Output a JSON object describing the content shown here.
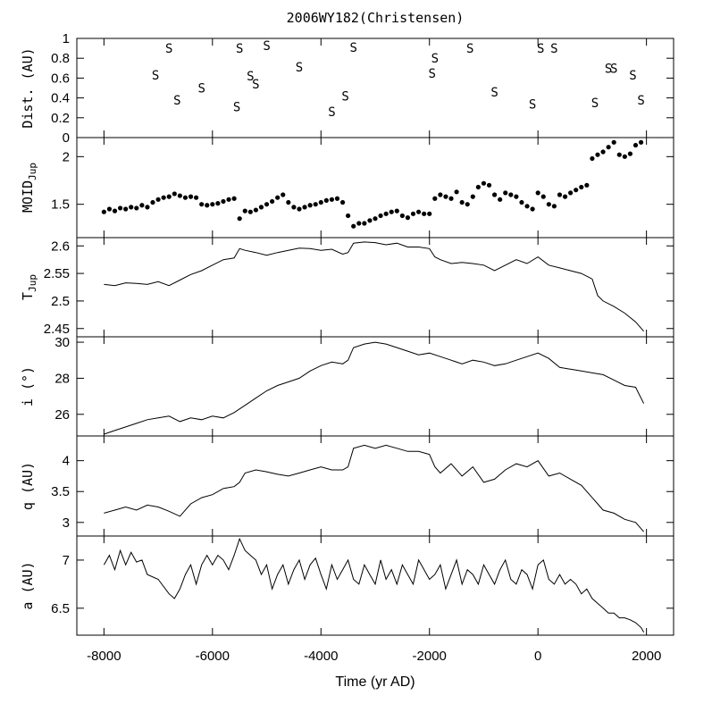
{
  "chart_data": {
    "type": "line",
    "title": "2006WY182(Christensen)",
    "xlabel": "Time (yr AD)",
    "xlim": [
      -8500,
      2500
    ],
    "xticks": [
      -8000,
      -6000,
      -4000,
      -2000,
      0,
      2000
    ],
    "xtick_labels": [
      "-8000",
      "-6000",
      "-4000",
      "-2000",
      "0",
      "2000"
    ],
    "panels": [
      {
        "name": "dist",
        "ylabel": "Dist. (AU)",
        "type": "scatter",
        "marker": "S",
        "ylim": [
          0,
          1
        ],
        "yticks": [
          0,
          0.2,
          0.4,
          0.6,
          0.8,
          1
        ],
        "ytick_labels": [
          "0",
          "0.2",
          "0.4",
          "0.6",
          "0.8",
          "1"
        ],
        "x": [
          -6800,
          -7050,
          -6650,
          -6200,
          -5550,
          -5500,
          -5300,
          -5200,
          -5000,
          -4400,
          -3800,
          -3550,
          -3400,
          -1950,
          -1900,
          -1250,
          -800,
          -100,
          50,
          300,
          1050,
          1300,
          1400,
          1750,
          1900
        ],
        "y": [
          0.9,
          0.63,
          0.38,
          0.5,
          0.31,
          0.9,
          0.62,
          0.54,
          0.93,
          0.71,
          0.26,
          0.42,
          0.91,
          0.65,
          0.8,
          0.9,
          0.46,
          0.34,
          0.9,
          0.9,
          0.35,
          0.7,
          0.7,
          0.63,
          0.38
        ]
      },
      {
        "name": "moid",
        "ylabel": "MOID_Jup",
        "ylabel_main": "MOID",
        "ylabel_sub": "Jup",
        "type": "scatter",
        "marker": "dot",
        "ylim": [
          1.15,
          2.2
        ],
        "yticks": [
          1.5,
          2
        ],
        "ytick_labels": [
          "1.5",
          "2"
        ],
        "x": [
          -8000,
          -7900,
          -7800,
          -7700,
          -7600,
          -7500,
          -7400,
          -7300,
          -7200,
          -7100,
          -7000,
          -6900,
          -6800,
          -6700,
          -6600,
          -6500,
          -6400,
          -6300,
          -6200,
          -6100,
          -6000,
          -5900,
          -5800,
          -5700,
          -5600,
          -5500,
          -5400,
          -5300,
          -5200,
          -5100,
          -5000,
          -4900,
          -4800,
          -4700,
          -4600,
          -4500,
          -4400,
          -4300,
          -4200,
          -4100,
          -4000,
          -3900,
          -3800,
          -3700,
          -3600,
          -3500,
          -3400,
          -3300,
          -3200,
          -3100,
          -3000,
          -2900,
          -2800,
          -2700,
          -2600,
          -2500,
          -2400,
          -2300,
          -2200,
          -2100,
          -2000,
          -1900,
          -1800,
          -1700,
          -1600,
          -1500,
          -1400,
          -1300,
          -1200,
          -1100,
          -1000,
          -900,
          -800,
          -700,
          -600,
          -500,
          -400,
          -300,
          -200,
          -100,
          0,
          100,
          200,
          300,
          400,
          500,
          600,
          700,
          800,
          900,
          1000,
          1100,
          1200,
          1300,
          1400,
          1500,
          1600,
          1700,
          1800,
          1900
        ],
        "y": [
          1.42,
          1.45,
          1.43,
          1.46,
          1.45,
          1.47,
          1.46,
          1.49,
          1.47,
          1.52,
          1.55,
          1.57,
          1.58,
          1.61,
          1.59,
          1.57,
          1.58,
          1.57,
          1.5,
          1.49,
          1.5,
          1.51,
          1.53,
          1.55,
          1.56,
          1.35,
          1.43,
          1.42,
          1.44,
          1.47,
          1.5,
          1.53,
          1.57,
          1.6,
          1.52,
          1.47,
          1.45,
          1.47,
          1.49,
          1.5,
          1.52,
          1.54,
          1.55,
          1.56,
          1.52,
          1.38,
          1.27,
          1.3,
          1.3,
          1.33,
          1.35,
          1.38,
          1.4,
          1.42,
          1.43,
          1.38,
          1.36,
          1.4,
          1.42,
          1.4,
          1.4,
          1.56,
          1.6,
          1.58,
          1.56,
          1.63,
          1.52,
          1.5,
          1.58,
          1.68,
          1.72,
          1.7,
          1.6,
          1.55,
          1.62,
          1.6,
          1.58,
          1.52,
          1.48,
          1.45,
          1.62,
          1.58,
          1.5,
          1.48,
          1.6,
          1.58,
          1.62,
          1.65,
          1.68,
          1.7,
          1.98,
          2.02,
          2.05,
          2.1,
          2.15,
          2.02,
          2.0,
          2.03,
          2.12,
          2.15
        ]
      },
      {
        "name": "tjup",
        "ylabel": "T_Jup",
        "ylabel_main": "T",
        "ylabel_sub": "Jup",
        "type": "line",
        "ylim": [
          2.435,
          2.615
        ],
        "yticks": [
          2.45,
          2.5,
          2.55,
          2.6
        ],
        "ytick_labels": [
          "2.45",
          "2.5",
          "2.55",
          "2.6"
        ],
        "x": [
          -8000,
          -7800,
          -7600,
          -7400,
          -7200,
          -7000,
          -6800,
          -6600,
          -6400,
          -6200,
          -6000,
          -5800,
          -5600,
          -5500,
          -5400,
          -5200,
          -5000,
          -4800,
          -4600,
          -4400,
          -4200,
          -4000,
          -3800,
          -3600,
          -3500,
          -3400,
          -3200,
          -3000,
          -2800,
          -2600,
          -2400,
          -2200,
          -2000,
          -1900,
          -1800,
          -1600,
          -1400,
          -1200,
          -1000,
          -800,
          -600,
          -400,
          -200,
          0,
          200,
          400,
          600,
          800,
          1000,
          1100,
          1200,
          1400,
          1600,
          1800,
          1950
        ],
        "y": [
          2.53,
          2.528,
          2.533,
          2.532,
          2.53,
          2.535,
          2.528,
          2.538,
          2.548,
          2.555,
          2.565,
          2.575,
          2.578,
          2.595,
          2.592,
          2.588,
          2.583,
          2.588,
          2.592,
          2.596,
          2.595,
          2.592,
          2.594,
          2.585,
          2.588,
          2.605,
          2.607,
          2.606,
          2.602,
          2.605,
          2.598,
          2.598,
          2.595,
          2.58,
          2.575,
          2.568,
          2.57,
          2.568,
          2.565,
          2.555,
          2.565,
          2.575,
          2.568,
          2.58,
          2.565,
          2.56,
          2.555,
          2.55,
          2.54,
          2.51,
          2.5,
          2.49,
          2.478,
          2.462,
          2.445
        ]
      },
      {
        "name": "inc",
        "ylabel": "i (°)",
        "type": "line",
        "ylim": [
          24.8,
          30.3
        ],
        "yticks": [
          26,
          28,
          30
        ],
        "ytick_labels": [
          "26",
          "28",
          "30"
        ],
        "x": [
          -8000,
          -7800,
          -7600,
          -7400,
          -7200,
          -7000,
          -6800,
          -6600,
          -6400,
          -6200,
          -6000,
          -5800,
          -5600,
          -5400,
          -5200,
          -5000,
          -4800,
          -4600,
          -4400,
          -4200,
          -4000,
          -3800,
          -3600,
          -3500,
          -3400,
          -3200,
          -3000,
          -2800,
          -2600,
          -2400,
          -2200,
          -2000,
          -1800,
          -1600,
          -1400,
          -1200,
          -1000,
          -800,
          -600,
          -400,
          -200,
          0,
          200,
          400,
          600,
          800,
          1000,
          1200,
          1400,
          1600,
          1800,
          1950
        ],
        "y": [
          24.9,
          25.1,
          25.3,
          25.5,
          25.7,
          25.8,
          25.9,
          25.6,
          25.8,
          25.7,
          25.9,
          25.8,
          26.1,
          26.5,
          26.9,
          27.3,
          27.6,
          27.8,
          28.0,
          28.4,
          28.7,
          28.9,
          28.8,
          29.0,
          29.7,
          29.9,
          30.0,
          29.9,
          29.7,
          29.5,
          29.3,
          29.4,
          29.2,
          29.0,
          28.8,
          29.0,
          28.9,
          28.7,
          28.8,
          29.0,
          29.2,
          29.4,
          29.1,
          28.6,
          28.5,
          28.4,
          28.3,
          28.2,
          27.9,
          27.6,
          27.5,
          26.6
        ]
      },
      {
        "name": "q",
        "ylabel": "q (AU)",
        "type": "line",
        "ylim": [
          2.78,
          4.4
        ],
        "yticks": [
          3,
          3.5,
          4
        ],
        "ytick_labels": [
          "3",
          "3.5",
          "4"
        ],
        "x": [
          -8000,
          -7800,
          -7600,
          -7400,
          -7200,
          -7000,
          -6800,
          -6600,
          -6400,
          -6200,
          -6000,
          -5800,
          -5600,
          -5500,
          -5400,
          -5200,
          -5000,
          -4800,
          -4600,
          -4400,
          -4200,
          -4000,
          -3800,
          -3600,
          -3500,
          -3400,
          -3200,
          -3000,
          -2800,
          -2600,
          -2400,
          -2200,
          -2000,
          -1900,
          -1800,
          -1600,
          -1400,
          -1200,
          -1000,
          -800,
          -600,
          -400,
          -200,
          0,
          200,
          400,
          600,
          800,
          1000,
          1100,
          1200,
          1400,
          1600,
          1800,
          1950
        ],
        "y": [
          3.15,
          3.2,
          3.25,
          3.2,
          3.28,
          3.25,
          3.18,
          3.1,
          3.3,
          3.4,
          3.45,
          3.55,
          3.58,
          3.65,
          3.8,
          3.85,
          3.82,
          3.78,
          3.75,
          3.8,
          3.85,
          3.9,
          3.85,
          3.85,
          3.9,
          4.2,
          4.25,
          4.2,
          4.25,
          4.2,
          4.15,
          4.15,
          4.1,
          3.9,
          3.8,
          3.95,
          3.75,
          3.9,
          3.65,
          3.7,
          3.85,
          3.95,
          3.9,
          4.0,
          3.75,
          3.8,
          3.7,
          3.6,
          3.4,
          3.3,
          3.2,
          3.15,
          3.05,
          3.0,
          2.85
        ]
      },
      {
        "name": "a",
        "ylabel": "a (AU)",
        "type": "line",
        "ylim": [
          6.22,
          7.25
        ],
        "yticks": [
          6.5,
          7
        ],
        "ytick_labels": [
          "6.5",
          "7"
        ],
        "x": [
          -8000,
          -7900,
          -7800,
          -7700,
          -7600,
          -7500,
          -7400,
          -7300,
          -7200,
          -7000,
          -6800,
          -6700,
          -6600,
          -6500,
          -6400,
          -6300,
          -6200,
          -6100,
          -6000,
          -5900,
          -5800,
          -5700,
          -5600,
          -5500,
          -5400,
          -5300,
          -5200,
          -5100,
          -5000,
          -4900,
          -4800,
          -4700,
          -4600,
          -4500,
          -4400,
          -4300,
          -4200,
          -4100,
          -4000,
          -3900,
          -3800,
          -3700,
          -3600,
          -3500,
          -3400,
          -3300,
          -3200,
          -3100,
          -3000,
          -2900,
          -2800,
          -2700,
          -2600,
          -2500,
          -2400,
          -2300,
          -2200,
          -2100,
          -2000,
          -1900,
          -1800,
          -1700,
          -1600,
          -1500,
          -1400,
          -1300,
          -1200,
          -1100,
          -1000,
          -900,
          -800,
          -700,
          -600,
          -500,
          -400,
          -300,
          -200,
          -100,
          0,
          100,
          200,
          300,
          400,
          500,
          600,
          700,
          800,
          900,
          1000,
          1100,
          1200,
          1300,
          1400,
          1500,
          1600,
          1700,
          1800,
          1900,
          1950
        ],
        "y": [
          6.95,
          7.05,
          6.9,
          7.1,
          6.95,
          7.08,
          6.98,
          7.0,
          6.85,
          6.8,
          6.65,
          6.6,
          6.7,
          6.85,
          6.95,
          6.75,
          6.95,
          7.05,
          6.95,
          7.05,
          7.0,
          6.9,
          7.05,
          7.22,
          7.1,
          7.05,
          7.0,
          6.85,
          6.95,
          6.7,
          6.85,
          6.95,
          6.75,
          6.9,
          7.0,
          6.8,
          6.95,
          7.02,
          6.85,
          6.7,
          6.95,
          6.8,
          6.9,
          7.0,
          6.8,
          6.75,
          6.95,
          6.85,
          6.75,
          7.0,
          6.8,
          6.9,
          6.75,
          6.95,
          6.85,
          6.75,
          7.0,
          6.9,
          6.8,
          6.85,
          6.95,
          6.7,
          6.85,
          7.0,
          6.75,
          6.9,
          6.85,
          6.75,
          6.95,
          6.85,
          6.75,
          6.9,
          7.0,
          6.8,
          6.75,
          6.9,
          6.85,
          6.7,
          6.95,
          7.0,
          6.8,
          6.75,
          6.85,
          6.75,
          6.8,
          6.75,
          6.65,
          6.7,
          6.6,
          6.55,
          6.5,
          6.45,
          6.45,
          6.4,
          6.4,
          6.38,
          6.35,
          6.3,
          6.25
        ]
      }
    ]
  }
}
